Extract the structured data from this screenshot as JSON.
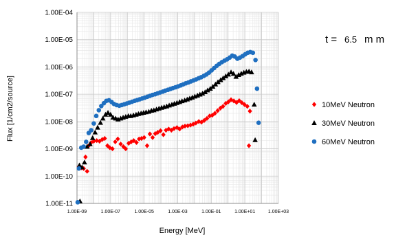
{
  "chart_data": {
    "type": "scatter",
    "xlabel": "Energy [MeV]",
    "ylabel": "Flux [1/cm2/source]",
    "x_scale": "log",
    "y_scale": "log",
    "xlim": [
      1e-09,
      1000
    ],
    "ylim": [
      1e-11,
      0.0001
    ],
    "x_ticks": [
      {
        "value": 1e-09,
        "label": "1.00E-09"
      },
      {
        "value": 1e-07,
        "label": "1.00E-07"
      },
      {
        "value": 1e-05,
        "label": "1.00E-05"
      },
      {
        "value": 0.001,
        "label": "1.00E-03"
      },
      {
        "value": 0.1,
        "label": "1.00E-01"
      },
      {
        "value": 10.0,
        "label": "1.00E+01"
      },
      {
        "value": 1000.0,
        "label": "1.00E+03"
      }
    ],
    "y_ticks": [
      {
        "value": 0.0001,
        "label": "1.00E-04"
      },
      {
        "value": 1e-05,
        "label": "1.00E-05"
      },
      {
        "value": 1e-06,
        "label": "1.00E-06"
      },
      {
        "value": 1e-07,
        "label": "1.00E-07"
      },
      {
        "value": 1e-08,
        "label": "1.00E-08"
      },
      {
        "value": 1e-09,
        "label": "1.00E-09"
      },
      {
        "value": 1e-10,
        "label": "1.00E-10"
      },
      {
        "value": 1e-11,
        "label": "1.00E-11"
      }
    ],
    "grid": true,
    "legend_position": "right",
    "annotation": {
      "prefix": "t =",
      "value": "6.5",
      "unit": "m m"
    },
    "series": [
      {
        "name": "10MeV Neutron",
        "marker": "diamond",
        "color": "#ff0000",
        "points": [
          [
            1.3e-09,
            2.2e-10
          ],
          [
            1.8e-09,
            2e-10
          ],
          [
            2.5e-09,
            1.9e-10
          ],
          [
            4e-09,
            1.5e-10
          ],
          [
            3.2e-09,
            5e-10
          ],
          [
            5e-09,
            1.3e-09
          ],
          [
            7e-09,
            1.7e-09
          ],
          [
            1e-08,
            1.9e-09
          ],
          [
            1.5e-08,
            2e-09
          ],
          [
            2.2e-08,
            1.9e-09
          ],
          [
            3.2e-08,
            2.2e-09
          ],
          [
            4.5e-08,
            2.4e-09
          ],
          [
            6.5e-08,
            1.3e-09
          ],
          [
            9e-08,
            1.1e-09
          ],
          [
            1.3e-07,
            1e-09
          ],
          [
            1.9e-07,
            1.8e-09
          ],
          [
            2.7e-07,
            2.3e-09
          ],
          [
            4e-07,
            1.5e-09
          ],
          [
            5.8e-07,
            1.2e-09
          ],
          [
            8e-07,
            1e-09
          ],
          [
            1.2e-06,
            1.6e-09
          ],
          [
            1.7e-06,
            1.8e-09
          ],
          [
            2.4e-06,
            2e-09
          ],
          [
            3.5e-06,
            1.7e-09
          ],
          [
            5e-06,
            2.3e-09
          ],
          [
            7e-06,
            2.4e-09
          ],
          [
            1e-05,
            2.6e-09
          ],
          [
            1.5e-05,
            1.3e-09
          ],
          [
            2.2e-05,
            3.5e-09
          ],
          [
            3.2e-05,
            2.6e-09
          ],
          [
            4.6e-05,
            3.6e-09
          ],
          [
            6.5e-05,
            4e-09
          ],
          [
            9.5e-05,
            4.6e-09
          ],
          [
            0.00014,
            3.3e-09
          ],
          [
            0.0002,
            4.8e-09
          ],
          [
            0.00029,
            5.3e-09
          ],
          [
            0.00042,
            4.8e-09
          ],
          [
            0.0006,
            5.5e-09
          ],
          [
            0.0009,
            6e-09
          ],
          [
            0.0013,
            5.3e-09
          ],
          [
            0.0019,
            6.3e-09
          ],
          [
            0.0027,
            6.8e-09
          ],
          [
            0.004,
            7e-09
          ],
          [
            0.0058,
            7.4e-09
          ],
          [
            0.0084,
            8e-09
          ],
          [
            0.012,
            8.8e-09
          ],
          [
            0.018,
            1e-08
          ],
          [
            0.026,
            9.5e-09
          ],
          [
            0.038,
            1.1e-08
          ],
          [
            0.055,
            1.3e-08
          ],
          [
            0.08,
            1.6e-08
          ],
          [
            0.115,
            1.7e-08
          ],
          [
            0.165,
            2e-08
          ],
          [
            0.24,
            2.5e-08
          ],
          [
            0.35,
            3.1e-08
          ],
          [
            0.5,
            3.6e-08
          ],
          [
            0.73,
            4.6e-08
          ],
          [
            1.05,
            5.3e-08
          ],
          [
            1.5,
            6.3e-08
          ],
          [
            2.2,
            5.7e-08
          ],
          [
            3.2,
            5e-08
          ],
          [
            4.6,
            5.8e-08
          ],
          [
            6.6,
            4.9e-08
          ],
          [
            9.5,
            4.2e-08
          ],
          [
            14.0,
            3.6e-08
          ],
          [
            20.0,
            2.4e-08
          ],
          [
            17.5,
            1.3e-09
          ]
        ]
      },
      {
        "name": "30MeV Neutron",
        "marker": "triangle",
        "color": "#000000",
        "points": [
          [
            1.5e-09,
            1.2e-11
          ],
          [
            1.4e-09,
            2.5e-10
          ],
          [
            2e-09,
            2.1e-10
          ],
          [
            2.8e-09,
            3.2e-10
          ],
          [
            4e-09,
            1.2e-09
          ],
          [
            6e-09,
            1.5e-09
          ],
          [
            8.5e-09,
            2.5e-09
          ],
          [
            1.2e-08,
            4e-09
          ],
          [
            1.7e-08,
            6e-09
          ],
          [
            2.5e-08,
            9e-09
          ],
          [
            3.5e-08,
            1.3e-08
          ],
          [
            5e-08,
            1.8e-08
          ],
          [
            7e-08,
            2.1e-08
          ],
          [
            1e-07,
            1.8e-08
          ],
          [
            1.4e-07,
            1.4e-08
          ],
          [
            2e-07,
            1.3e-08
          ],
          [
            2.8e-07,
            1.2e-08
          ],
          [
            4e-07,
            1.3e-08
          ],
          [
            5.6e-07,
            1.4e-08
          ],
          [
            8e-07,
            1.5e-08
          ],
          [
            1.15e-06,
            1.6e-08
          ],
          [
            1.6e-06,
            1.6e-08
          ],
          [
            2.3e-06,
            1.7e-08
          ],
          [
            3.3e-06,
            1.8e-08
          ],
          [
            4.6e-06,
            1.9e-08
          ],
          [
            6.6e-06,
            2e-08
          ],
          [
            9.3e-06,
            2.1e-08
          ],
          [
            1.3e-05,
            2.2e-08
          ],
          [
            1.9e-05,
            2.3e-08
          ],
          [
            2.7e-05,
            2.5e-08
          ],
          [
            3.8e-05,
            2.6e-08
          ],
          [
            5.4e-05,
            2.8e-08
          ],
          [
            7.7e-05,
            3e-08
          ],
          [
            0.00011,
            3.2e-08
          ],
          [
            0.000155,
            3.4e-08
          ],
          [
            0.00022,
            3.6e-08
          ],
          [
            0.00031,
            3.9e-08
          ],
          [
            0.00045,
            4.2e-08
          ],
          [
            0.00063,
            4.5e-08
          ],
          [
            0.0009,
            4.8e-08
          ],
          [
            0.0013,
            5.2e-08
          ],
          [
            0.0018,
            5.6e-08
          ],
          [
            0.0026,
            6e-08
          ],
          [
            0.0037,
            6.5e-08
          ],
          [
            0.0052,
            7e-08
          ],
          [
            0.0074,
            7.6e-08
          ],
          [
            0.0105,
            8.3e-08
          ],
          [
            0.015,
            9e-08
          ],
          [
            0.021,
            9.8e-08
          ],
          [
            0.03,
            1.07e-07
          ],
          [
            0.043,
            1.2e-07
          ],
          [
            0.061,
            1.4e-07
          ],
          [
            0.087,
            1.6e-07
          ],
          [
            0.124,
            1.9e-07
          ],
          [
            0.177,
            2.3e-07
          ],
          [
            0.25,
            2.8e-07
          ],
          [
            0.36,
            3.3e-07
          ],
          [
            0.51,
            3.9e-07
          ],
          [
            0.73,
            4.6e-07
          ],
          [
            1.04,
            5.3e-07
          ],
          [
            1.5,
            6.4e-07
          ],
          [
            2.1,
            5.6e-07
          ],
          [
            3,
            4.4e-07
          ],
          [
            4.3,
            5.1e-07
          ],
          [
            6.1,
            5.7e-07
          ],
          [
            8.7,
            6.2e-07
          ],
          [
            12.4,
            6.7e-07
          ],
          [
            17.7,
            6.9e-07
          ],
          [
            25.0,
            6.4e-07
          ],
          [
            36.0,
            4.2e-08
          ],
          [
            41.0,
            2.1e-09
          ]
        ]
      },
      {
        "name": "60MeV Neutron",
        "marker": "circle",
        "color": "#1f6fc0",
        "points": [
          [
            1.1e-09,
            1.1e-11
          ],
          [
            1.3e-09,
            1.9e-10
          ],
          [
            1.8e-09,
            1.1e-09
          ],
          [
            2.5e-09,
            1.2e-09
          ],
          [
            3.5e-09,
            1.8e-09
          ],
          [
            5e-09,
            3.8e-09
          ],
          [
            7e-09,
            4.8e-09
          ],
          [
            1e-08,
            8.5e-09
          ],
          [
            1.4e-08,
            1.6e-08
          ],
          [
            2e-08,
            2.6e-08
          ],
          [
            2.8e-08,
            3.7e-08
          ],
          [
            4e-08,
            4.7e-08
          ],
          [
            5.6e-08,
            5.7e-08
          ],
          [
            8e-08,
            6e-08
          ],
          [
            1.15e-07,
            5.2e-08
          ],
          [
            1.6e-07,
            4.4e-08
          ],
          [
            2.3e-07,
            4e-08
          ],
          [
            3.3e-07,
            3.8e-08
          ],
          [
            4.6e-07,
            4e-08
          ],
          [
            6.6e-07,
            4.3e-08
          ],
          [
            9.3e-07,
            4.6e-08
          ],
          [
            1.3e-06,
            4.9e-08
          ],
          [
            1.9e-06,
            5.3e-08
          ],
          [
            2.7e-06,
            5.7e-08
          ],
          [
            3.8e-06,
            6.1e-08
          ],
          [
            5.4e-06,
            6.5e-08
          ],
          [
            7.7e-06,
            7e-08
          ],
          [
            1.1e-05,
            7.5e-08
          ],
          [
            1.55e-05,
            8.1e-08
          ],
          [
            2.2e-05,
            8.7e-08
          ],
          [
            3.1e-05,
            9.4e-08
          ],
          [
            4.5e-05,
            1e-07
          ],
          [
            6.3e-05,
            1.08e-07
          ],
          [
            9e-05,
            1.16e-07
          ],
          [
            0.00013,
            1.25e-07
          ],
          [
            0.00018,
            1.35e-07
          ],
          [
            0.00026,
            1.45e-07
          ],
          [
            0.00037,
            1.56e-07
          ],
          [
            0.00052,
            1.68e-07
          ],
          [
            0.00074,
            1.8e-07
          ],
          [
            0.00105,
            1.95e-07
          ],
          [
            0.0015,
            2.1e-07
          ],
          [
            0.0021,
            2.3e-07
          ],
          [
            0.003,
            2.5e-07
          ],
          [
            0.0043,
            2.7e-07
          ],
          [
            0.0061,
            2.95e-07
          ],
          [
            0.0087,
            3.2e-07
          ],
          [
            0.0124,
            3.5e-07
          ],
          [
            0.0177,
            3.85e-07
          ],
          [
            0.025,
            4.2e-07
          ],
          [
            0.036,
            4.7e-07
          ],
          [
            0.051,
            5.3e-07
          ],
          [
            0.073,
            6.2e-07
          ],
          [
            0.104,
            7.5e-07
          ],
          [
            0.148,
            9.1e-07
          ],
          [
            0.21,
            1.1e-06
          ],
          [
            0.3,
            1.3e-06
          ],
          [
            0.43,
            1.5e-06
          ],
          [
            0.61,
            1.7e-06
          ],
          [
            0.87,
            1.9e-06
          ],
          [
            1.24,
            2.2e-06
          ],
          [
            1.77,
            2.6e-06
          ],
          [
            2.5,
            2.4e-06
          ],
          [
            3.6,
            2e-06
          ],
          [
            5.1,
            2.2e-06
          ],
          [
            7.3,
            2.5e-06
          ],
          [
            10.4,
            2.9e-06
          ],
          [
            14.8,
            3.3e-06
          ],
          [
            21.0,
            3.5e-06
          ],
          [
            30.0,
            3.3e-06
          ],
          [
            43.0,
            1.8e-06
          ],
          [
            53.0,
            1.6e-07
          ],
          [
            66.0,
            9e-09
          ]
        ]
      }
    ]
  }
}
